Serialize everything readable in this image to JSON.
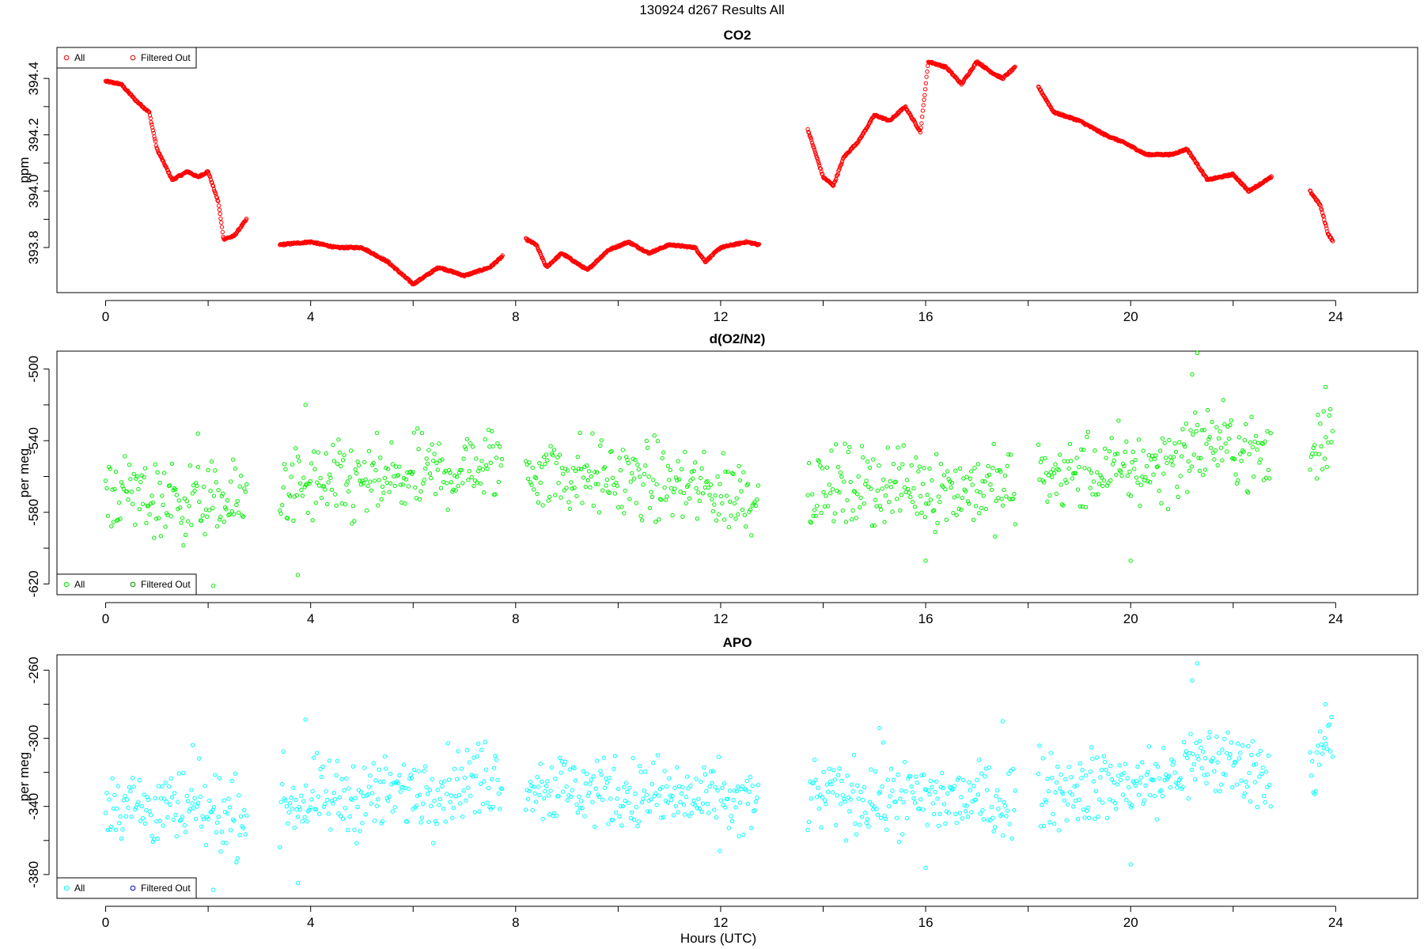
{
  "figure": {
    "title": "130924   d267   Results All",
    "xlabel": "Hours (UTC)"
  },
  "chart_data": [
    {
      "type": "scatter",
      "title": "CO2",
      "ylabel": "ppm",
      "xlim": [
        -0.95,
        25.6
      ],
      "ylim": [
        393.64,
        394.51
      ],
      "xticks": [
        "0",
        "4",
        "8",
        "12",
        "16",
        "20",
        "24"
      ],
      "yticks": [
        "393.8",
        "394.0",
        "394.2",
        "394.4"
      ],
      "legend": {
        "position": "top-left",
        "entries": [
          "All",
          "Filtered Out"
        ]
      },
      "colors": {
        "all": "#ff0000",
        "filtered": "#cc0000"
      },
      "series": [
        {
          "name": "All",
          "x_range": [
            0,
            2.75
          ],
          "anchors": [
            [
              0,
              394.39
            ],
            [
              0.3,
              394.38
            ],
            [
              0.6,
              394.32
            ],
            [
              0.85,
              394.28
            ],
            [
              1.0,
              394.15
            ],
            [
              1.3,
              394.04
            ],
            [
              1.6,
              394.07
            ],
            [
              1.8,
              394.05
            ],
            [
              2.0,
              394.07
            ],
            [
              2.2,
              393.96
            ],
            [
              2.3,
              393.83
            ],
            [
              2.5,
              393.84
            ],
            [
              2.75,
              393.9
            ]
          ]
        },
        {
          "name": "All",
          "x_range": [
            3.4,
            7.75
          ],
          "anchors": [
            [
              3.4,
              393.81
            ],
            [
              4.0,
              393.82
            ],
            [
              4.5,
              393.8
            ],
            [
              5.0,
              393.8
            ],
            [
              5.5,
              393.75
            ],
            [
              6.0,
              393.67
            ],
            [
              6.5,
              393.73
            ],
            [
              7.0,
              393.7
            ],
            [
              7.5,
              393.73
            ],
            [
              7.75,
              393.77
            ]
          ]
        },
        {
          "name": "All",
          "x_range": [
            8.2,
            12.75
          ],
          "anchors": [
            [
              8.2,
              393.83
            ],
            [
              8.4,
              393.81
            ],
            [
              8.6,
              393.73
            ],
            [
              8.9,
              393.78
            ],
            [
              9.4,
              393.72
            ],
            [
              9.8,
              393.79
            ],
            [
              10.2,
              393.82
            ],
            [
              10.6,
              393.78
            ],
            [
              11.0,
              393.81
            ],
            [
              11.5,
              393.8
            ],
            [
              11.7,
              393.75
            ],
            [
              12.0,
              393.8
            ],
            [
              12.5,
              393.82
            ],
            [
              12.75,
              393.81
            ]
          ]
        },
        {
          "name": "All",
          "x_range": [
            13.7,
            17.75
          ],
          "anchors": [
            [
              13.7,
              394.22
            ],
            [
              14.0,
              394.05
            ],
            [
              14.2,
              394.02
            ],
            [
              14.4,
              394.12
            ],
            [
              14.7,
              394.18
            ],
            [
              15.0,
              394.27
            ],
            [
              15.3,
              394.25
            ],
            [
              15.6,
              394.3
            ],
            [
              15.9,
              394.21
            ],
            [
              16.05,
              394.46
            ],
            [
              16.4,
              394.44
            ],
            [
              16.7,
              394.38
            ],
            [
              17.0,
              394.46
            ],
            [
              17.3,
              394.42
            ],
            [
              17.5,
              394.4
            ],
            [
              17.75,
              394.44
            ]
          ]
        },
        {
          "name": "All",
          "x_range": [
            18.2,
            22.75
          ],
          "anchors": [
            [
              18.2,
              394.37
            ],
            [
              18.5,
              394.28
            ],
            [
              19.0,
              394.25
            ],
            [
              19.5,
              394.2
            ],
            [
              19.9,
              394.17
            ],
            [
              20.3,
              394.13
            ],
            [
              20.8,
              394.13
            ],
            [
              21.1,
              394.15
            ],
            [
              21.5,
              394.04
            ],
            [
              22.0,
              394.06
            ],
            [
              22.3,
              394.0
            ],
            [
              22.75,
              394.05
            ]
          ]
        },
        {
          "name": "All",
          "x_range": [
            23.5,
            23.95
          ],
          "anchors": [
            [
              23.5,
              394.0
            ],
            [
              23.7,
              393.95
            ],
            [
              23.85,
              393.85
            ],
            [
              23.95,
              393.82
            ]
          ]
        }
      ]
    },
    {
      "type": "scatter",
      "title": "d(O2/N2)",
      "ylabel": "per meg",
      "xlim": [
        -0.95,
        25.6
      ],
      "ylim": [
        -626,
        -490
      ],
      "xticks": [
        "0",
        "4",
        "8",
        "12",
        "16",
        "20",
        "24"
      ],
      "yticks": [
        "-620",
        "-580",
        "-540",
        "-500"
      ],
      "legend": {
        "position": "bottom-left",
        "entries": [
          "All",
          "Filtered Out"
        ]
      },
      "colors": {
        "all": "#00ee00",
        "filtered": "#008800"
      },
      "series": [
        {
          "name": "All",
          "x_range": [
            0,
            2.75
          ],
          "anchors": [
            [
              0,
              -567
            ],
            [
              1.0,
              -573
            ],
            [
              2.75,
              -575
            ]
          ]
        },
        {
          "name": "All",
          "x_range": [
            3.4,
            7.75
          ],
          "anchors": [
            [
              3.4,
              -567
            ],
            [
              5.5,
              -563
            ],
            [
              7.75,
              -552
            ]
          ]
        },
        {
          "name": "All",
          "x_range": [
            8.2,
            12.75
          ],
          "anchors": [
            [
              8.2,
              -556
            ],
            [
              10.5,
              -563
            ],
            [
              12.75,
              -571
            ]
          ]
        },
        {
          "name": "All",
          "x_range": [
            13.7,
            17.75
          ],
          "anchors": [
            [
              13.7,
              -567
            ],
            [
              15.5,
              -565
            ],
            [
              17.75,
              -567
            ]
          ]
        },
        {
          "name": "All",
          "x_range": [
            18.2,
            22.75
          ],
          "anchors": [
            [
              18.2,
              -560
            ],
            [
              20.5,
              -555
            ],
            [
              21.5,
              -540
            ],
            [
              22.75,
              -550
            ]
          ]
        },
        {
          "name": "All",
          "x_range": [
            23.5,
            23.95
          ],
          "anchors": [
            [
              23.5,
              -550
            ],
            [
              23.95,
              -530
            ]
          ]
        }
      ],
      "outliers": [
        [
          2.1,
          -621
        ],
        [
          3.75,
          -615
        ],
        [
          3.9,
          -520
        ],
        [
          1.8,
          -536
        ],
        [
          21.3,
          -491
        ],
        [
          21.2,
          -503
        ],
        [
          23.8,
          -510
        ],
        [
          20.0,
          -607
        ],
        [
          16.0,
          -607
        ]
      ]
    },
    {
      "type": "scatter",
      "title": "APO",
      "ylabel": "per meg",
      "xlim": [
        -0.95,
        25.6
      ],
      "ylim": [
        -394,
        -251
      ],
      "xticks": [
        "0",
        "4",
        "8",
        "12",
        "16",
        "20",
        "24"
      ],
      "yticks": [
        "-380",
        "-340",
        "-300",
        "-260"
      ],
      "legend": {
        "position": "bottom-left",
        "entries": [
          "All",
          "Filtered Out"
        ]
      },
      "colors": {
        "all": "#00ffff",
        "filtered": "#0000cc"
      },
      "series": [
        {
          "name": "All",
          "x_range": [
            0,
            2.75
          ],
          "anchors": [
            [
              0,
              -336
            ],
            [
              1.0,
              -342
            ],
            [
              2.75,
              -345
            ]
          ]
        },
        {
          "name": "All",
          "x_range": [
            3.4,
            7.75
          ],
          "anchors": [
            [
              3.4,
              -338
            ],
            [
              5.5,
              -333
            ],
            [
              7.75,
              -322
            ]
          ]
        },
        {
          "name": "All",
          "x_range": [
            8.2,
            12.75
          ],
          "anchors": [
            [
              8.2,
              -327
            ],
            [
              10.5,
              -333
            ],
            [
              12.75,
              -340
            ]
          ]
        },
        {
          "name": "All",
          "x_range": [
            13.7,
            17.75
          ],
          "anchors": [
            [
              13.7,
              -334
            ],
            [
              15.5,
              -335
            ],
            [
              17.75,
              -337
            ]
          ]
        },
        {
          "name": "All",
          "x_range": [
            18.2,
            22.75
          ],
          "anchors": [
            [
              18.2,
              -330
            ],
            [
              20.5,
              -326
            ],
            [
              21.5,
              -312
            ],
            [
              22.75,
              -320
            ]
          ]
        },
        {
          "name": "All",
          "x_range": [
            23.5,
            23.95
          ],
          "anchors": [
            [
              23.5,
              -320
            ],
            [
              23.95,
              -300
            ]
          ]
        }
      ],
      "outliers": [
        [
          2.1,
          -389
        ],
        [
          3.75,
          -385
        ],
        [
          3.9,
          -289
        ],
        [
          1.7,
          -304
        ],
        [
          21.3,
          -256
        ],
        [
          21.2,
          -266
        ],
        [
          23.8,
          -280
        ],
        [
          20.0,
          -374
        ],
        [
          16.0,
          -376
        ],
        [
          15.1,
          -294
        ],
        [
          17.5,
          -290
        ]
      ]
    }
  ]
}
